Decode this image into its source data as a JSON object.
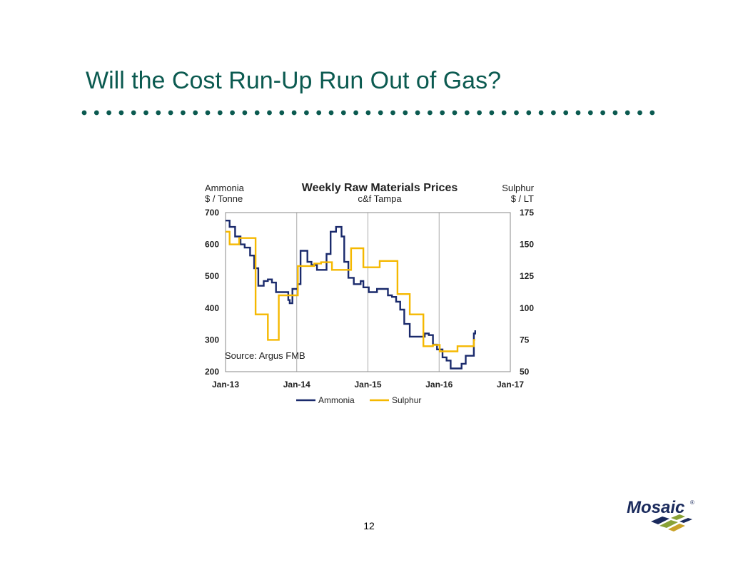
{
  "slide": {
    "title": "Will the Cost Run-Up Run Out of Gas?",
    "page_number": "12",
    "logo_text": "Mosaic",
    "logo_mark": "®",
    "colors": {
      "title": "#0b5a50",
      "dots": "#0b5a50"
    }
  },
  "chart_data": {
    "type": "line",
    "title": "Weekly Raw Materials Prices",
    "subtitle": "c&f Tampa",
    "left_axis_label": [
      "Ammonia",
      "$ / Tonne"
    ],
    "right_axis_label": [
      "Sulphur",
      "$ / LT"
    ],
    "source_note": "Source: Argus FMB",
    "x_range": [
      "2013-01",
      "2017-01"
    ],
    "x_ticks": [
      "Jan-13",
      "Jan-14",
      "Jan-15",
      "Jan-16",
      "Jan-17"
    ],
    "y_left": {
      "range": [
        200,
        700
      ],
      "ticks": [
        "200",
        "300",
        "400",
        "500",
        "600",
        "700"
      ]
    },
    "y_right": {
      "range": [
        50,
        175
      ],
      "ticks": [
        "50",
        "75",
        "100",
        "125",
        "150",
        "175"
      ]
    },
    "grid": "vertical gridlines at each x tick",
    "legend_position": "bottom",
    "series": [
      {
        "name": "Ammonia",
        "axis": "left",
        "color": "#1a2a6c",
        "points": [
          [
            "2013-01-01",
            675
          ],
          [
            "2013-01-22",
            655
          ],
          [
            "2013-02-19",
            625
          ],
          [
            "2013-03-19",
            600
          ],
          [
            "2013-04-09",
            590
          ],
          [
            "2013-05-07",
            565
          ],
          [
            "2013-05-28",
            525
          ],
          [
            "2013-06-18",
            470
          ],
          [
            "2013-07-16",
            485
          ],
          [
            "2013-08-06",
            490
          ],
          [
            "2013-08-27",
            480
          ],
          [
            "2013-09-17",
            450
          ],
          [
            "2013-10-22",
            450
          ],
          [
            "2013-11-19",
            425
          ],
          [
            "2013-11-26",
            415
          ],
          [
            "2013-12-10",
            460
          ],
          [
            "2014-01-07",
            475
          ],
          [
            "2014-01-21",
            580
          ],
          [
            "2014-02-25",
            545
          ],
          [
            "2014-03-18",
            535
          ],
          [
            "2014-04-15",
            520
          ],
          [
            "2014-05-27",
            520
          ],
          [
            "2014-06-03",
            570
          ],
          [
            "2014-06-24",
            640
          ],
          [
            "2014-07-22",
            655
          ],
          [
            "2014-08-19",
            625
          ],
          [
            "2014-09-02",
            545
          ],
          [
            "2014-09-23",
            495
          ],
          [
            "2014-10-21",
            475
          ],
          [
            "2014-11-25",
            485
          ],
          [
            "2014-12-09",
            465
          ],
          [
            "2015-01-06",
            450
          ],
          [
            "2015-01-27",
            450
          ],
          [
            "2015-02-17",
            460
          ],
          [
            "2015-03-31",
            460
          ],
          [
            "2015-04-14",
            440
          ],
          [
            "2015-05-05",
            435
          ],
          [
            "2015-05-26",
            420
          ],
          [
            "2015-06-16",
            395
          ],
          [
            "2015-07-07",
            350
          ],
          [
            "2015-08-04",
            310
          ],
          [
            "2015-09-01",
            310
          ],
          [
            "2015-09-29",
            310
          ],
          [
            "2015-10-20",
            320
          ],
          [
            "2015-11-10",
            315
          ],
          [
            "2015-12-01",
            285
          ],
          [
            "2015-12-22",
            270
          ],
          [
            "2016-01-19",
            245
          ],
          [
            "2016-02-09",
            235
          ],
          [
            "2016-03-01",
            210
          ],
          [
            "2016-03-29",
            210
          ],
          [
            "2016-04-26",
            225
          ],
          [
            "2016-05-17",
            250
          ],
          [
            "2016-06-14",
            250
          ],
          [
            "2016-06-28",
            320
          ],
          [
            "2016-07-05",
            330
          ]
        ]
      },
      {
        "name": "Sulphur",
        "axis": "right",
        "color": "#f5b800",
        "points": [
          [
            "2013-01-01",
            160
          ],
          [
            "2013-01-22",
            150
          ],
          [
            "2013-02-26",
            150
          ],
          [
            "2013-03-12",
            155
          ],
          [
            "2013-04-23",
            155
          ],
          [
            "2013-05-28",
            155
          ],
          [
            "2013-06-04",
            95
          ],
          [
            "2013-07-09",
            95
          ],
          [
            "2013-08-06",
            75
          ],
          [
            "2013-08-27",
            75
          ],
          [
            "2013-09-17",
            75
          ],
          [
            "2013-09-24",
            75
          ],
          [
            "2013-10-01",
            110
          ],
          [
            "2013-11-05",
            110
          ],
          [
            "2013-12-03",
            110
          ],
          [
            "2013-12-10",
            110
          ],
          [
            "2014-01-07",
            133
          ],
          [
            "2014-02-04",
            133
          ],
          [
            "2014-03-04",
            133
          ],
          [
            "2014-04-01",
            135
          ],
          [
            "2014-05-06",
            136
          ],
          [
            "2014-06-03",
            136
          ],
          [
            "2014-07-01",
            130
          ],
          [
            "2014-08-05",
            130
          ],
          [
            "2014-09-02",
            130
          ],
          [
            "2014-10-07",
            147
          ],
          [
            "2014-11-04",
            147
          ],
          [
            "2014-12-02",
            147
          ],
          [
            "2014-12-09",
            132
          ],
          [
            "2015-01-06",
            132
          ],
          [
            "2015-02-03",
            132
          ],
          [
            "2015-03-03",
            137
          ],
          [
            "2015-04-07",
            137
          ],
          [
            "2015-05-05",
            137
          ],
          [
            "2015-06-02",
            111
          ],
          [
            "2015-06-30",
            111
          ],
          [
            "2015-07-07",
            111
          ],
          [
            "2015-08-04",
            95
          ],
          [
            "2015-09-01",
            95
          ],
          [
            "2015-10-06",
            95
          ],
          [
            "2015-10-13",
            70
          ],
          [
            "2015-11-03",
            70
          ],
          [
            "2015-12-01",
            71
          ],
          [
            "2016-01-05",
            66
          ],
          [
            "2016-02-02",
            66
          ],
          [
            "2016-03-01",
            66
          ],
          [
            "2016-04-05",
            70
          ],
          [
            "2016-05-03",
            70
          ],
          [
            "2016-06-07",
            70
          ],
          [
            "2016-06-28",
            75
          ],
          [
            "2016-07-05",
            75
          ]
        ]
      }
    ]
  }
}
